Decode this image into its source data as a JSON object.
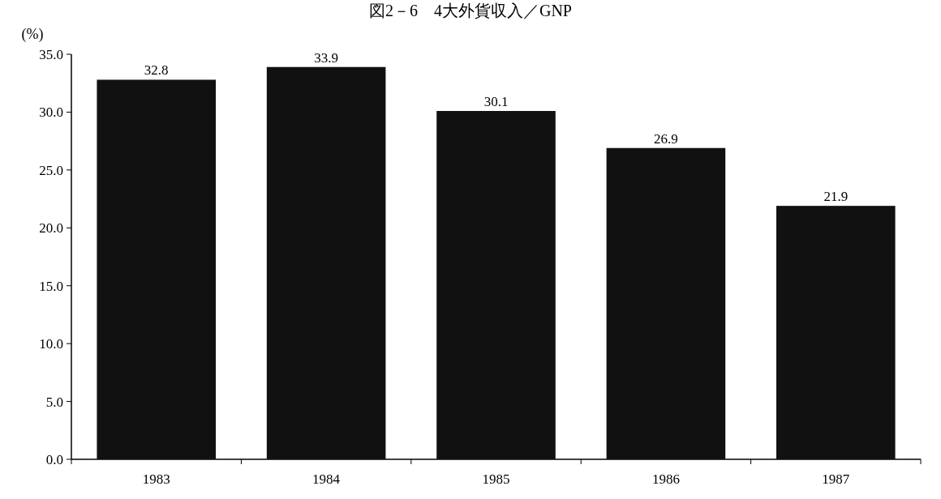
{
  "chart_data": {
    "type": "bar",
    "title": "図2－6　4大外貨収入／GNP",
    "ylabel": "(%)",
    "categories": [
      "1983",
      "1984",
      "1985",
      "1986",
      "1987"
    ],
    "values": [
      32.8,
      33.9,
      30.1,
      26.9,
      21.9
    ],
    "color": "#111111",
    "ylim": [
      0,
      35
    ],
    "yticks": [
      {
        "value": 0,
        "label": "0.0"
      },
      {
        "value": 5,
        "label": "5.0"
      },
      {
        "value": 10,
        "label": "10.0"
      },
      {
        "value": 15,
        "label": "15.0"
      },
      {
        "value": 20,
        "label": "20.0"
      },
      {
        "value": 25,
        "label": "25.0"
      },
      {
        "value": 30,
        "label": "30.0"
      },
      {
        "value": 35,
        "label": "35.0"
      }
    ],
    "data_labels": true,
    "grid": false
  }
}
